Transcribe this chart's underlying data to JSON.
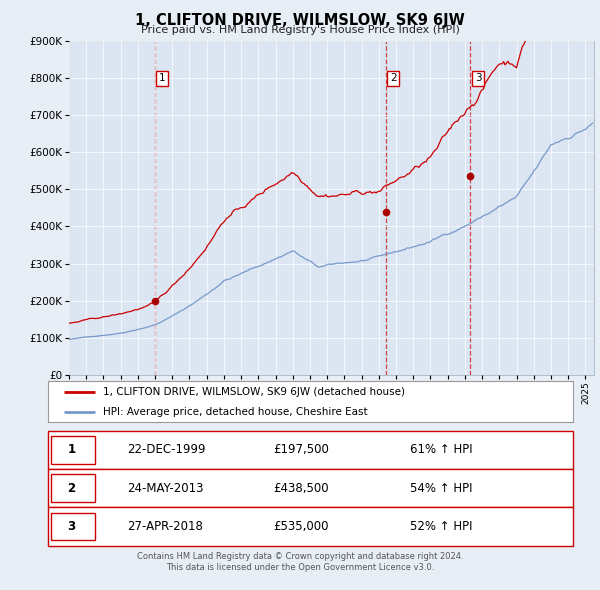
{
  "title": "1, CLIFTON DRIVE, WILMSLOW, SK9 6JW",
  "subtitle": "Price paid vs. HM Land Registry's House Price Index (HPI)",
  "bg_color": "#e8eef5",
  "plot_bg_color": "#dce6f2",
  "red_line_color": "#cc0000",
  "blue_line_color": "#7799cc",
  "marker_color": "#aa0000",
  "vline_color": "#cc3333",
  "ylim": [
    0,
    900000
  ],
  "yticks": [
    0,
    100000,
    200000,
    300000,
    400000,
    500000,
    600000,
    700000,
    800000,
    900000
  ],
  "ytick_labels": [
    "£0",
    "£100K",
    "£200K",
    "£300K",
    "£400K",
    "£500K",
    "£600K",
    "£700K",
    "£800K",
    "£900K"
  ],
  "xstart": 1995.0,
  "xend": 2025.5,
  "sale_dates": [
    1999.97,
    2013.39,
    2018.32
  ],
  "sale_prices": [
    197500,
    438500,
    535000
  ],
  "sale_labels": [
    "1",
    "2",
    "3"
  ],
  "legend_red": "1, CLIFTON DRIVE, WILMSLOW, SK9 6JW (detached house)",
  "legend_blue": "HPI: Average price, detached house, Cheshire East",
  "table_data": [
    [
      "1",
      "22-DEC-1999",
      "£197,500",
      "61% ↑ HPI"
    ],
    [
      "2",
      "24-MAY-2013",
      "£438,500",
      "54% ↑ HPI"
    ],
    [
      "3",
      "27-APR-2018",
      "£535,000",
      "52% ↑ HPI"
    ]
  ],
  "footer": "Contains HM Land Registry data © Crown copyright and database right 2024.\nThis data is licensed under the Open Government Licence v3.0."
}
